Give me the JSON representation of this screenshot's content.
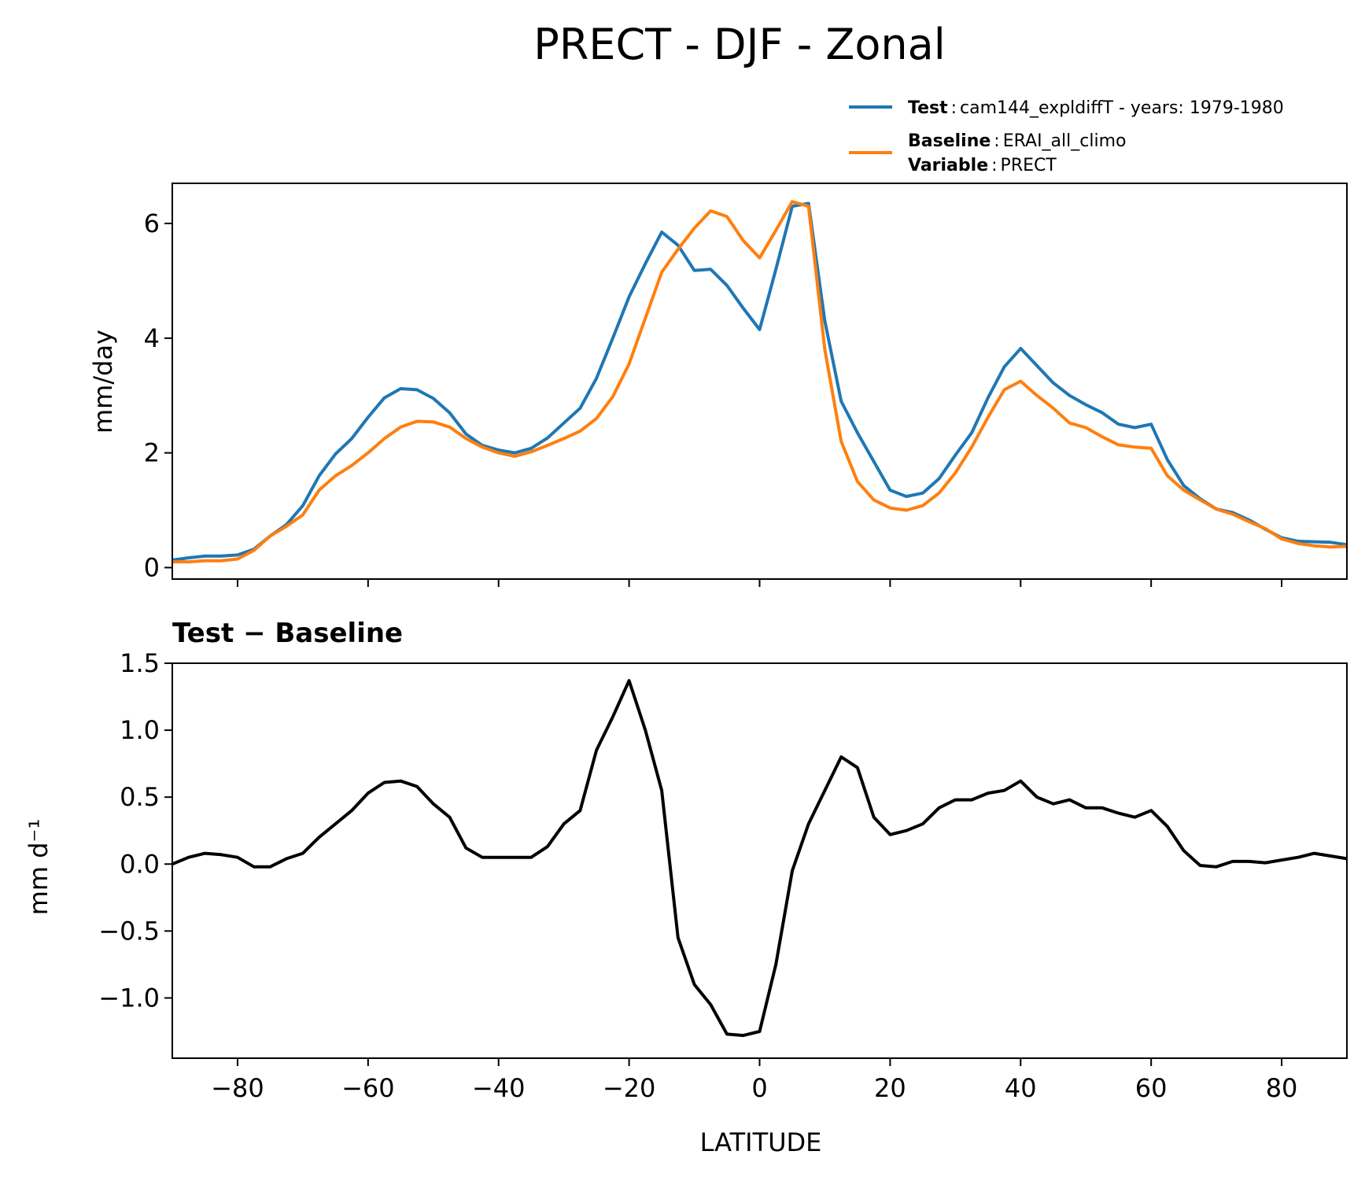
{
  "title": "PRECT - DJF - Zonal",
  "legend": {
    "test_label": "Test",
    "test_value": "cam144_expldiffT - years: 1979-1980",
    "baseline_label": "Baseline",
    "baseline_value": "ERAI_all_climo",
    "variable_label": "Variable",
    "variable_value": "PRECT",
    "separator": ":"
  },
  "colors": {
    "test": "#1f77b4",
    "baseline": "#ff7f0e",
    "diff": "#000000"
  },
  "chart_data": [
    {
      "type": "line",
      "title": "",
      "xlabel": "",
      "ylabel": "mm/day",
      "xlim": [
        -90,
        90
      ],
      "ylim": [
        -0.2,
        6.7
      ],
      "yticks": [
        0,
        2,
        4,
        6
      ],
      "ytick_labels": [
        "0",
        "2",
        "4",
        "6"
      ],
      "xticks": [
        -80,
        -60,
        -40,
        -20,
        0,
        20,
        40,
        60,
        80
      ],
      "x": [
        -90,
        -87.5,
        -85,
        -82.5,
        -80,
        -77.5,
        -75,
        -72.5,
        -70,
        -67.5,
        -65,
        -62.5,
        -60,
        -57.5,
        -55,
        -52.5,
        -50,
        -47.5,
        -45,
        -42.5,
        -40,
        -37.5,
        -35,
        -32.5,
        -30,
        -27.5,
        -25,
        -22.5,
        -20,
        -17.5,
        -15,
        -12.5,
        -10,
        -7.5,
        -5,
        -2.5,
        0,
        2.5,
        5,
        7.5,
        10,
        12.5,
        15,
        17.5,
        20,
        22.5,
        25,
        27.5,
        30,
        32.5,
        35,
        37.5,
        40,
        42.5,
        45,
        47.5,
        50,
        52.5,
        55,
        57.5,
        60,
        62.5,
        65,
        67.5,
        70,
        72.5,
        75,
        77.5,
        80,
        82.5,
        85,
        87.5,
        90
      ],
      "series": [
        {
          "name": "Test",
          "values": [
            0.13,
            0.17,
            0.2,
            0.2,
            0.22,
            0.32,
            0.55,
            0.75,
            1.08,
            1.6,
            1.98,
            2.25,
            2.62,
            2.96,
            3.12,
            3.1,
            2.95,
            2.7,
            2.33,
            2.13,
            2.05,
            2.0,
            2.08,
            2.26,
            2.52,
            2.78,
            3.3,
            4.0,
            4.72,
            5.3,
            5.85,
            5.62,
            5.18,
            5.2,
            4.92,
            4.52,
            4.15,
            5.2,
            6.3,
            6.35,
            4.3,
            2.9,
            2.35,
            1.85,
            1.35,
            1.24,
            1.3,
            1.55,
            1.96,
            2.35,
            2.96,
            3.5,
            3.82,
            3.52,
            3.22,
            3.0,
            2.84,
            2.7,
            2.5,
            2.44,
            2.5,
            1.88,
            1.43,
            1.2,
            1.02,
            0.96,
            0.83,
            0.67,
            0.52,
            0.46,
            0.45,
            0.44,
            0.4
          ]
        },
        {
          "name": "Baseline",
          "values": [
            0.1,
            0.1,
            0.12,
            0.12,
            0.15,
            0.3,
            0.55,
            0.72,
            0.92,
            1.35,
            1.6,
            1.78,
            2.0,
            2.25,
            2.45,
            2.55,
            2.54,
            2.45,
            2.25,
            2.1,
            2.0,
            1.94,
            2.02,
            2.13,
            2.25,
            2.38,
            2.6,
            2.98,
            3.55,
            4.35,
            5.15,
            5.55,
            5.92,
            6.22,
            6.12,
            5.7,
            5.4,
            5.88,
            6.38,
            6.3,
            3.8,
            2.2,
            1.5,
            1.18,
            1.04,
            1.0,
            1.08,
            1.3,
            1.65,
            2.1,
            2.62,
            3.1,
            3.25,
            3.0,
            2.78,
            2.52,
            2.44,
            2.28,
            2.14,
            2.1,
            2.08,
            1.6,
            1.35,
            1.18,
            1.02,
            0.93,
            0.8,
            0.68,
            0.5,
            0.42,
            0.38,
            0.36,
            0.37
          ]
        }
      ]
    },
    {
      "type": "line",
      "title": "Test − Baseline",
      "xlabel": "LATITUDE",
      "ylabel": "mm d⁻¹",
      "xlim": [
        -90,
        90
      ],
      "ylim": [
        -1.45,
        1.5
      ],
      "yticks": [
        -1.0,
        -0.5,
        0.0,
        0.5,
        1.0,
        1.5
      ],
      "ytick_labels": [
        "−1.0",
        "−0.5",
        "0.0",
        "0.5",
        "1.0",
        "1.5"
      ],
      "xticks": [
        -80,
        -60,
        -40,
        -20,
        0,
        20,
        40,
        60,
        80
      ],
      "xtick_labels": [
        "−80",
        "−60",
        "−40",
        "−20",
        "0",
        "20",
        "40",
        "60",
        "80"
      ],
      "x": [
        -90,
        -87.5,
        -85,
        -82.5,
        -80,
        -77.5,
        -75,
        -72.5,
        -70,
        -67.5,
        -65,
        -62.5,
        -60,
        -57.5,
        -55,
        -52.5,
        -50,
        -47.5,
        -45,
        -42.5,
        -40,
        -37.5,
        -35,
        -32.5,
        -30,
        -27.5,
        -25,
        -22.5,
        -20,
        -17.5,
        -15,
        -12.5,
        -10,
        -7.5,
        -5,
        -2.5,
        0,
        2.5,
        5,
        7.5,
        10,
        12.5,
        15,
        17.5,
        20,
        22.5,
        25,
        27.5,
        30,
        32.5,
        35,
        37.5,
        40,
        42.5,
        45,
        47.5,
        50,
        52.5,
        55,
        57.5,
        60,
        62.5,
        65,
        67.5,
        70,
        72.5,
        75,
        77.5,
        80,
        82.5,
        85,
        87.5,
        90
      ],
      "series": [
        {
          "name": "Test − Baseline",
          "values": [
            0.0,
            0.05,
            0.08,
            0.07,
            0.05,
            -0.02,
            -0.02,
            0.04,
            0.08,
            0.2,
            0.3,
            0.4,
            0.53,
            0.61,
            0.62,
            0.58,
            0.45,
            0.35,
            0.12,
            0.05,
            0.05,
            0.05,
            0.05,
            0.13,
            0.3,
            0.4,
            0.85,
            1.1,
            1.37,
            1.0,
            0.55,
            -0.55,
            -0.9,
            -1.05,
            -1.27,
            -1.28,
            -1.25,
            -0.75,
            -0.05,
            0.3,
            0.55,
            0.8,
            0.72,
            0.35,
            0.22,
            0.25,
            0.3,
            0.42,
            0.48,
            0.48,
            0.53,
            0.55,
            0.62,
            0.5,
            0.45,
            0.48,
            0.42,
            0.42,
            0.38,
            0.35,
            0.4,
            0.28,
            0.1,
            -0.01,
            -0.02,
            0.02,
            0.02,
            0.01,
            0.03,
            0.05,
            0.08,
            0.06,
            0.04
          ]
        }
      ]
    }
  ]
}
